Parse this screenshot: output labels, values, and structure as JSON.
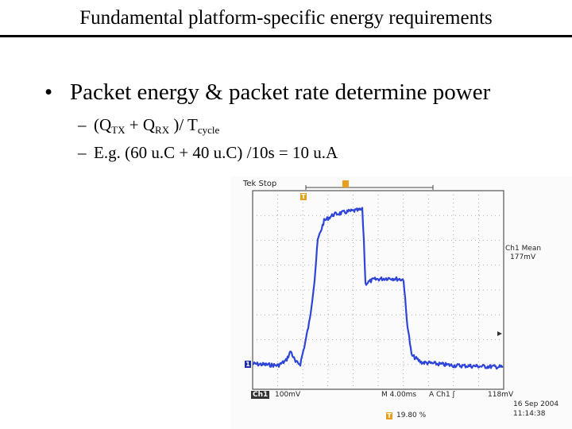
{
  "slide": {
    "title": "Fundamental platform-specific energy requirements",
    "bullet": "Packet energy & packet rate determine power",
    "sub_bullets": {
      "formula": {
        "prefix": "(Q",
        "tx_sub": "TX",
        "plus": " + Q",
        "rx_sub": "RX",
        "middle": " )/ T",
        "cycle_sub": "cycle"
      },
      "example": "E.g. (60 u.C + 40 u.C) /10s = 10 u.A"
    }
  },
  "scope": {
    "status": "Tek Stop",
    "mean_label": "Ch1 Mean",
    "mean_value": "177mV",
    "ch1_label": "Ch1",
    "ch1_scale": "100mV",
    "time_scale": "M 4.00ms",
    "trigger_source": "A  Ch1  ʃ",
    "trigger_level": "118mV",
    "date": "16 Sep  2004",
    "time": "11:14:38",
    "position": "19.80 %",
    "marker_trigger": "T",
    "marker_ch1": "1",
    "colors": {
      "trace": "#2f45d8",
      "grid": "#9a9a9a",
      "marker": "#e6a020"
    }
  }
}
